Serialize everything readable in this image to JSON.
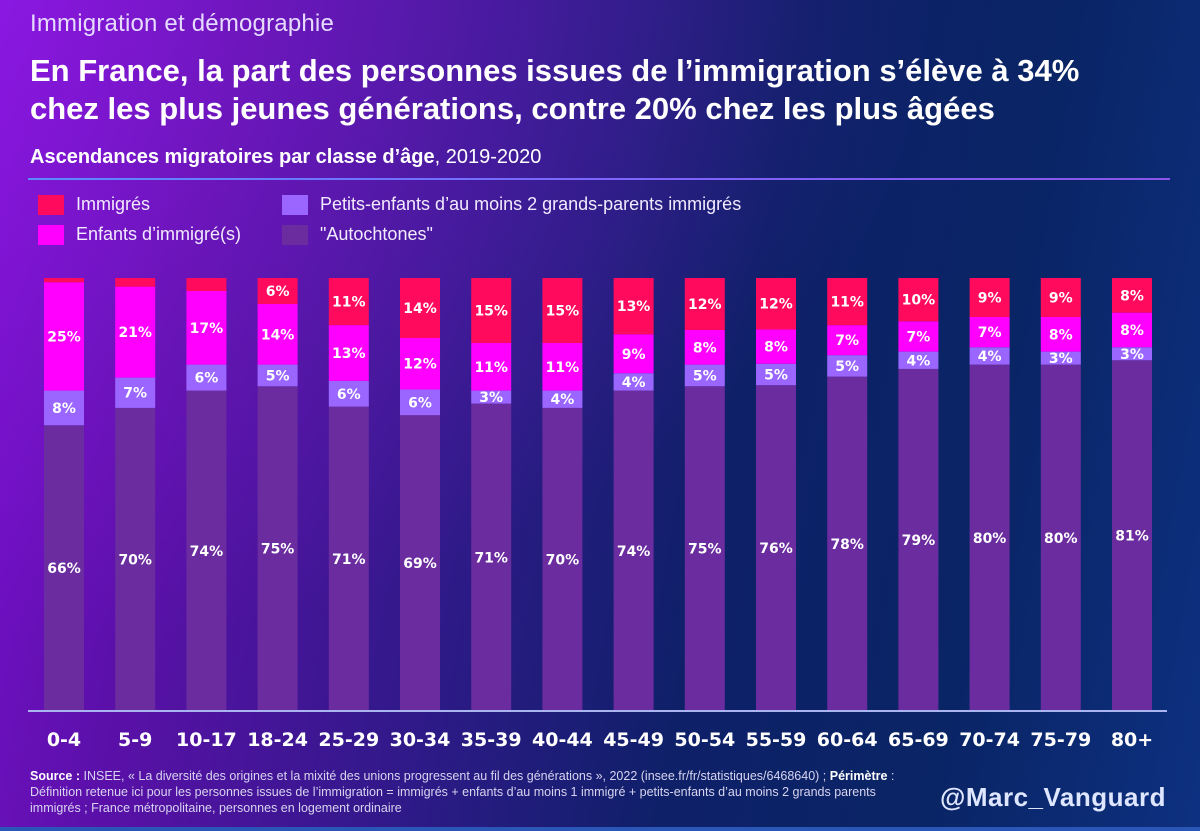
{
  "header": {
    "kicker": "Immigration et démographie",
    "headline_line1": "En France, la part des personnes issues de l’immigration s’élève à 34%",
    "headline_line2": "chez les plus jeunes générations, contre 20% chez les plus âgées",
    "subtitle_bold": "Ascendances migratoires par classe d’âge",
    "subtitle_rest": ", 2019-2020"
  },
  "legend": [
    {
      "label": "Immigrés",
      "color": "#ff0a5c"
    },
    {
      "label": "Enfants d’immigré(s)",
      "color": "#ff00ff"
    },
    {
      "label": "Petits-enfants d’au moins 2 grands-parents immigrés",
      "color": "#9a66ff"
    },
    {
      "label": "\"Autochtones\"",
      "color": "#6a2c9e"
    }
  ],
  "chart_data": {
    "type": "bar",
    "stacked": true,
    "orientation": "vertical",
    "title": "Ascendances migratoires par classe d’âge, 2019-2020",
    "xlabel": "",
    "ylabel": "",
    "ylim": [
      0,
      100
    ],
    "unit": "%",
    "grid": false,
    "legend_position": "top-left",
    "categories": [
      "0-4",
      "5-9",
      "10-17",
      "18-24",
      "25-29",
      "30-34",
      "35-39",
      "40-44",
      "45-49",
      "50-54",
      "55-59",
      "60-64",
      "65-69",
      "70-74",
      "75-79",
      "80+"
    ],
    "series": [
      {
        "name": "\"Autochtones\"",
        "color": "#6a2c9e",
        "values": [
          66,
          70,
          74,
          75,
          71,
          69,
          71,
          70,
          74,
          75,
          76,
          78,
          79,
          80,
          80,
          81
        ],
        "labels_shown": [
          true,
          true,
          true,
          true,
          true,
          true,
          true,
          true,
          true,
          true,
          true,
          true,
          true,
          true,
          true,
          true
        ]
      },
      {
        "name": "Petits-enfants d’au moins 2 grands-parents immigrés",
        "color": "#9a66ff",
        "values": [
          8,
          7,
          6,
          5,
          6,
          6,
          3,
          4,
          4,
          5,
          5,
          5,
          4,
          4,
          3,
          3
        ],
        "labels_shown": [
          true,
          true,
          true,
          true,
          true,
          true,
          true,
          true,
          true,
          true,
          true,
          true,
          true,
          true,
          true,
          true
        ]
      },
      {
        "name": "Enfants d’immigré(s)",
        "color": "#ff00ff",
        "values": [
          25,
          21,
          17,
          14,
          13,
          12,
          11,
          11,
          9,
          8,
          8,
          7,
          7,
          7,
          8,
          8
        ],
        "labels_shown": [
          true,
          true,
          true,
          true,
          true,
          true,
          true,
          true,
          true,
          true,
          true,
          true,
          true,
          true,
          true,
          true
        ]
      },
      {
        "name": "Immigrés",
        "color": "#ff0a5c",
        "values": [
          1,
          2,
          3,
          6,
          11,
          14,
          15,
          15,
          13,
          12,
          12,
          11,
          10,
          9,
          9,
          8
        ],
        "labels_shown": [
          false,
          false,
          false,
          true,
          true,
          true,
          true,
          true,
          true,
          true,
          true,
          true,
          true,
          true,
          true,
          true
        ]
      }
    ]
  },
  "footer": {
    "source_label": "Source :",
    "source_text": " INSEE, « La diversité des origines et la mixité des unions progressent au fil des générations », 2022 (insee.fr/fr/statistiques/6468640) ; ",
    "perimetre_label": "Périmètre",
    "perimetre_text": " : Définition retenue ici pour les personnes issues de l’immigration = immigrés + enfants d’au moins 1 immigré + petits-enfants d’au moins 2 grands parents immigrés ; France métropolitaine, personnes en logement ordinaire",
    "handle": "@Marc_Vanguard"
  }
}
